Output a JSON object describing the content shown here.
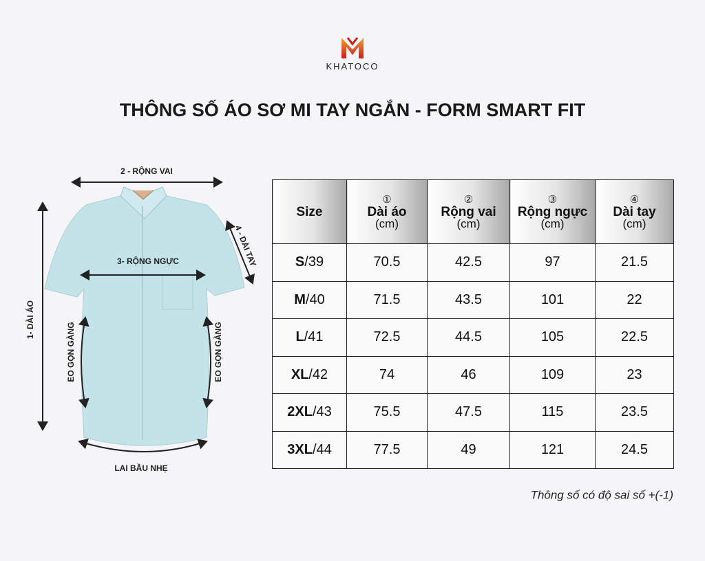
{
  "logo": {
    "text": "KHATOCO"
  },
  "title": "THÔNG SỐ ÁO SƠ MI TAY NGẮN - FORM SMART FIT",
  "diagram": {
    "width_label": "2 - RỘNG VAI",
    "length_label": "1- DÀI ÁO",
    "chest_label": "3- RỘNG NGỰC",
    "sleeve_label": "4 - DÀI TAY",
    "waist_left_label": "EO GỌN GÀNG",
    "waist_right_label": "EO GỌN GÀNG",
    "hem_label": "LAI BẦU NHẸ"
  },
  "table": {
    "header": [
      {
        "label": "Size"
      },
      {
        "number": "①",
        "label": "Dài áo",
        "unit": "(cm)"
      },
      {
        "number": "②",
        "label": "Rộng vai",
        "unit": "(cm)"
      },
      {
        "number": "③",
        "label": "Rộng ngực",
        "unit": "(cm)"
      },
      {
        "number": "④",
        "label": "Dài tay",
        "unit": "(cm)"
      }
    ],
    "rows": [
      {
        "size": "S",
        "number": "/39",
        "values": [
          70.5,
          42.5,
          97,
          21.5
        ]
      },
      {
        "size": "M",
        "number": "/40",
        "values": [
          71.5,
          43.5,
          101,
          22
        ]
      },
      {
        "size": "L",
        "number": "/41",
        "values": [
          72.5,
          44.5,
          105,
          22.5
        ]
      },
      {
        "size": "XL",
        "number": "/42",
        "values": [
          74,
          46,
          109,
          23
        ]
      },
      {
        "size": "2XL",
        "number": "/43",
        "values": [
          75.5,
          47.5,
          115,
          23.5
        ]
      },
      {
        "size": "3XL",
        "number": "/44",
        "values": [
          77.5,
          49,
          121,
          24.5
        ]
      }
    ]
  },
  "note": "Thông số có độ sai số +(-1)"
}
